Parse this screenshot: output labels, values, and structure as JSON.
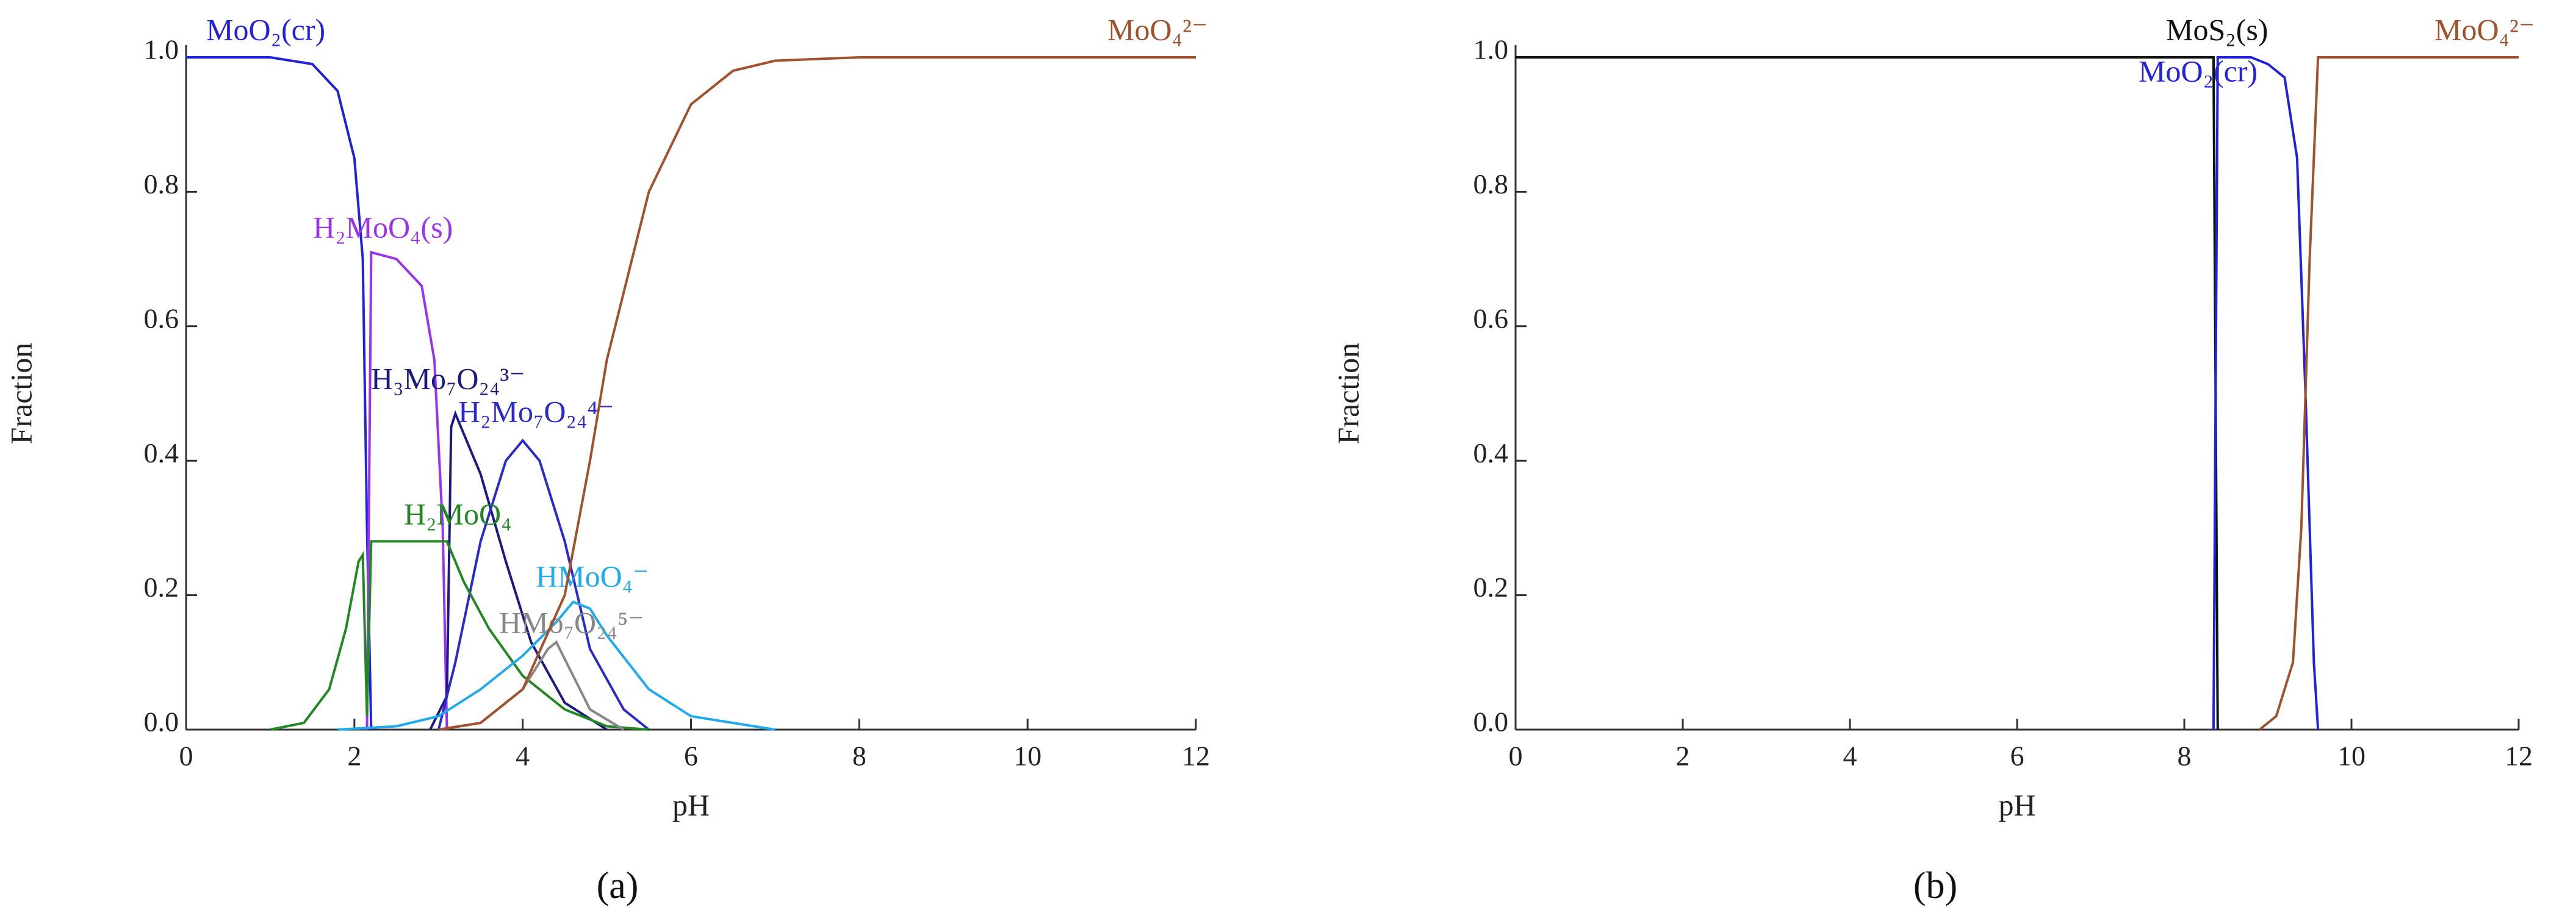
{
  "chart_data": [
    {
      "type": "line",
      "label": "(a)",
      "xlabel": "pH",
      "ylabel": "Fraction",
      "xlim": [
        0,
        12
      ],
      "xticks": [
        0,
        2,
        4,
        6,
        8,
        10,
        12
      ],
      "ylim": [
        0,
        1
      ],
      "yticks": [
        {
          "value": 0,
          "label": "0.0"
        },
        0.2,
        0.4,
        0.6,
        0.8,
        {
          "value": 1,
          "label": "1.0"
        }
      ],
      "series": [
        {
          "name": "MoO₂(cr)",
          "color": "#2222dd",
          "x": [
            0,
            1,
            1.5,
            1.8,
            2.0,
            2.1,
            2.15,
            2.2
          ],
          "values": [
            1,
            1,
            0.99,
            0.95,
            0.85,
            0.7,
            0.3,
            0
          ]
        },
        {
          "name": "H₂MoO₄(s)",
          "color": "#9933ee",
          "x": [
            2.15,
            2.2,
            2.5,
            2.8,
            2.95,
            3.05,
            3.1
          ],
          "values": [
            0,
            0.71,
            0.7,
            0.66,
            0.55,
            0.3,
            0
          ]
        },
        {
          "name": "H₃Mo₇O₂₄³⁻",
          "color": "#1a1a80",
          "x": [
            2.9,
            3.1,
            3.15,
            3.2,
            3.5,
            3.8,
            4.1,
            4.5,
            5.0
          ],
          "values": [
            0,
            0.05,
            0.45,
            0.47,
            0.38,
            0.25,
            0.13,
            0.04,
            0
          ]
        },
        {
          "name": "H₂Mo₇O₂₄⁴⁻",
          "color": "#2a2acc",
          "x": [
            3.0,
            3.2,
            3.5,
            3.8,
            4.0,
            4.2,
            4.5,
            4.8,
            5.2,
            5.5
          ],
          "values": [
            0,
            0.1,
            0.28,
            0.4,
            0.43,
            0.4,
            0.28,
            0.12,
            0.03,
            0
          ]
        },
        {
          "name": "H₂MoO₄",
          "color": "#228822",
          "x": [
            1.0,
            1.4,
            1.7,
            1.9,
            2.05,
            2.1,
            2.15,
            2.2,
            3.1,
            3.3,
            3.6,
            4.0,
            4.5,
            5.0,
            5.5
          ],
          "values": [
            0,
            0.01,
            0.06,
            0.15,
            0.25,
            0.26,
            0.02,
            0.28,
            0.28,
            0.22,
            0.15,
            0.08,
            0.03,
            0.005,
            0
          ]
        },
        {
          "name": "HMoO₄⁻",
          "color": "#22aaee",
          "x": [
            1.8,
            2.5,
            3.0,
            3.5,
            4.0,
            4.4,
            4.6,
            4.8,
            5.0,
            5.5,
            6.0,
            7.0
          ],
          "values": [
            0,
            0.005,
            0.02,
            0.06,
            0.11,
            0.16,
            0.19,
            0.18,
            0.14,
            0.06,
            0.02,
            0
          ]
        },
        {
          "name": "HMo₇O₂₄⁵⁻",
          "color": "#888888",
          "x": [
            3.0,
            3.5,
            4.0,
            4.3,
            4.4,
            4.6,
            4.8,
            5.2
          ],
          "values": [
            0,
            0.01,
            0.06,
            0.12,
            0.13,
            0.08,
            0.03,
            0
          ]
        },
        {
          "name": "MoO₄²⁻",
          "color": "#a0522d",
          "x": [
            3.0,
            3.5,
            4.0,
            4.5,
            4.8,
            5.0,
            5.5,
            6.0,
            6.5,
            7.0,
            8.0,
            12.0
          ],
          "values": [
            0,
            0.01,
            0.06,
            0.2,
            0.4,
            0.55,
            0.8,
            0.93,
            0.98,
            0.995,
            1,
            1
          ]
        }
      ]
    },
    {
      "type": "line",
      "label": "(b)",
      "xlabel": "pH",
      "ylabel": "Fraction",
      "xlim": [
        0,
        12
      ],
      "xticks": [
        0,
        2,
        4,
        6,
        8,
        10,
        12
      ],
      "ylim": [
        0,
        1
      ],
      "yticks": [
        {
          "value": 0,
          "label": "0.0"
        },
        0.2,
        0.4,
        0.6,
        0.8,
        {
          "value": 1,
          "label": "1.0"
        }
      ],
      "series": [
        {
          "name": "MoS₂(s)",
          "color": "#111111",
          "x": [
            0,
            8.35,
            8.4
          ],
          "values": [
            1,
            1,
            0
          ]
        },
        {
          "name": "MoO₂(cr)",
          "color": "#2222dd",
          "x": [
            8.35,
            8.4,
            8.8,
            9.0,
            9.2,
            9.35,
            9.45,
            9.55,
            9.6
          ],
          "values": [
            0,
            1,
            1,
            0.99,
            0.97,
            0.85,
            0.5,
            0.1,
            0
          ]
        },
        {
          "name": "MoO₄²⁻",
          "color": "#a0522d",
          "x": [
            8.9,
            9.1,
            9.3,
            9.4,
            9.5,
            9.6,
            12.0
          ],
          "values": [
            0,
            0.02,
            0.1,
            0.3,
            0.7,
            1,
            1
          ]
        }
      ]
    }
  ]
}
